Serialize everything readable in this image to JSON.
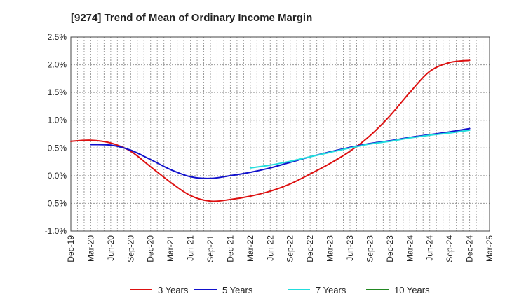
{
  "chart_data": {
    "type": "line",
    "title": "[9274]  Trend of Mean of Ordinary Income Margin",
    "xlabel": "",
    "ylabel": "",
    "x_categories": [
      "Dec-19",
      "Mar-20",
      "Jun-20",
      "Sep-20",
      "Dec-20",
      "Mar-21",
      "Jun-21",
      "Sep-21",
      "Dec-21",
      "Mar-22",
      "Jun-22",
      "Sep-22",
      "Dec-22",
      "Mar-23",
      "Jun-23",
      "Sep-23",
      "Dec-23",
      "Mar-24",
      "Jun-24",
      "Sep-24",
      "Dec-24",
      "Mar-25"
    ],
    "y_ticks": [
      "2.5%",
      "2.0%",
      "1.5%",
      "1.0%",
      "0.5%",
      "0.0%",
      "-0.5%",
      "-1.0%"
    ],
    "ylim": [
      -1.0,
      2.5
    ],
    "grid": true,
    "legend_position": "bottom",
    "series": [
      {
        "name": "3 Years",
        "color": "#dd1111",
        "values": [
          0.62,
          0.64,
          0.59,
          0.44,
          0.16,
          -0.12,
          -0.36,
          -0.46,
          -0.43,
          -0.37,
          -0.28,
          -0.15,
          0.03,
          0.22,
          0.44,
          0.72,
          1.08,
          1.5,
          1.88,
          2.04,
          2.08,
          null
        ]
      },
      {
        "name": "5 Years",
        "color": "#1111cc",
        "values": [
          null,
          0.56,
          0.55,
          0.46,
          0.29,
          0.11,
          -0.02,
          -0.05,
          0.0,
          0.06,
          0.14,
          0.24,
          0.34,
          0.43,
          0.51,
          0.58,
          0.63,
          0.69,
          0.74,
          0.79,
          0.85,
          null
        ]
      },
      {
        "name": "7 Years",
        "color": "#22dddd",
        "values": [
          null,
          null,
          null,
          null,
          null,
          null,
          null,
          null,
          null,
          0.14,
          0.19,
          0.26,
          0.34,
          0.42,
          0.5,
          0.57,
          0.62,
          0.68,
          0.73,
          0.77,
          0.82,
          null
        ]
      },
      {
        "name": "10 Years",
        "color": "#228822",
        "values": [
          null,
          null,
          null,
          null,
          null,
          null,
          null,
          null,
          null,
          null,
          null,
          null,
          null,
          null,
          null,
          null,
          null,
          null,
          null,
          null,
          null,
          null
        ]
      }
    ]
  }
}
